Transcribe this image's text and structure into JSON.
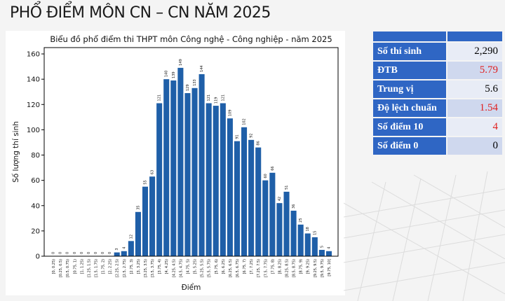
{
  "page": {
    "title": "PHỔ ĐIỂM MÔN CN – CN NĂM 2025"
  },
  "stats": [
    {
      "label": "Số thí sinh",
      "value": "2,290",
      "highlight": false
    },
    {
      "label": "ĐTB",
      "value": "5.79",
      "highlight": true
    },
    {
      "label": "Trung vị",
      "value": "5.6",
      "highlight": false
    },
    {
      "label": "Độ lệch chuẩn",
      "value": "1.54",
      "highlight": true
    },
    {
      "label": "Số điểm 10",
      "value": "4",
      "highlight": true
    },
    {
      "label": "Số điểm 0",
      "value": "0",
      "highlight": false
    }
  ],
  "colors": {
    "bar": "#1f5fa8",
    "header": "#2f66c4",
    "highlight_value": "#e02020"
  },
  "chart_data": {
    "type": "bar",
    "title": "Biểu đồ phổ điểm thi THPT môn Công nghệ - Công nghiệp - năm 2025",
    "xlabel": "Điểm",
    "ylabel": "Số lượng thí sinh",
    "ylim": [
      0,
      165
    ],
    "yticks": [
      0,
      20,
      40,
      60,
      80,
      100,
      120,
      140,
      160
    ],
    "grid": false,
    "categories": [
      "[0, 0.25)",
      "[0.25, 0.5)",
      "[0.5, 0.75)",
      "[0.75, 1)",
      "[1, 1.25)",
      "[1.25, 1.5)",
      "[1.5, 1.75)",
      "[1.75, 2)",
      "[2, 2.25)",
      "[2.25, 2.5)",
      "[2.5, 2.75)",
      "[2.75, 3)",
      "[3, 3.25)",
      "[3.25, 3.5)",
      "[3.5, 3.75)",
      "[3.75, 4)",
      "[4, 4.25)",
      "[4.25, 4.5)",
      "[4.5, 4.75)",
      "[4.75, 5)",
      "[5, 5.25)",
      "[5.25, 5.5)",
      "[5.5, 5.75)",
      "[5.75, 6)",
      "[6, 6.25)",
      "[6.25, 6.5)",
      "[6.5, 6.75)",
      "[6.75, 7)",
      "[7, 7.25)",
      "[7.25, 7.5)",
      "[7.5, 7.75)",
      "[7.75, 8)",
      "[8, 8.25)",
      "[8.25, 8.5)",
      "[8.5, 8.75)",
      "[8.75, 9)",
      "[9, 9.25)",
      "[9.25, 9.5)",
      "[9.5, 9.75)",
      "[9.75, 10]"
    ],
    "values": [
      0,
      0,
      0,
      0,
      0,
      0,
      0,
      0,
      0,
      3,
      4,
      12,
      35,
      55,
      63,
      121,
      140,
      139,
      149,
      129,
      133,
      144,
      121,
      119,
      121,
      109,
      91,
      102,
      92,
      86,
      60,
      66,
      42,
      51,
      36,
      25,
      18,
      15,
      5,
      4
    ]
  }
}
